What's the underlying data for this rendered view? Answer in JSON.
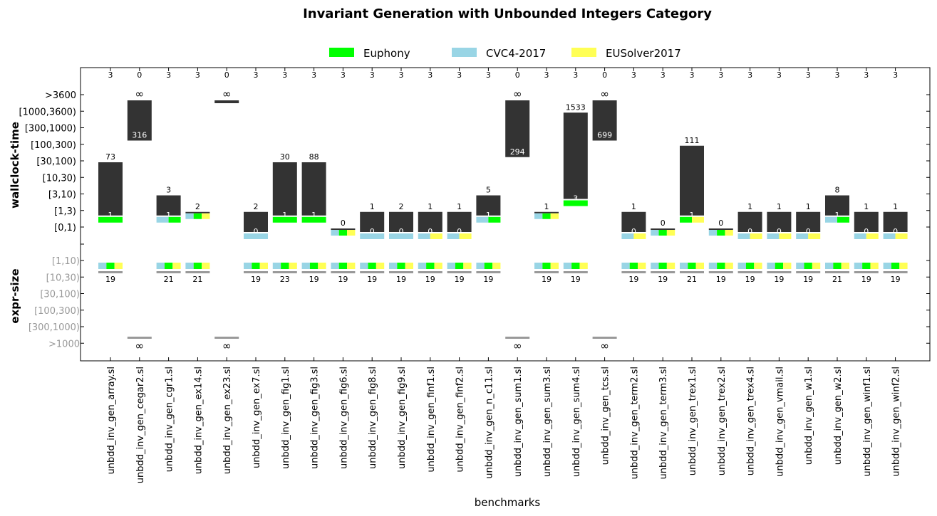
{
  "chart_data": {
    "type": "bar",
    "title": "Invariant Generation with Unbounded Integers Category",
    "xlabel": "benchmarks",
    "ylabel_time": "wallclock-time",
    "ylabel_size": "expr-size",
    "time_ticks": [
      ">3600",
      "[1000,3600)",
      "[300,1000)",
      "[100,300)",
      "[30,100)",
      "[10,30)",
      "[3,10)",
      "[1,3)",
      "[0,1)"
    ],
    "size_ticks": [
      "[1,10)",
      "[10,30)",
      "[30,100)",
      "[100,300)",
      "[300,1000)",
      ">1000"
    ],
    "legend": [
      {
        "name": "Euphony",
        "color": "#00ff00"
      },
      {
        "name": "CVC4-2017",
        "color": "#99d5e5"
      },
      {
        "name": "EUSolver2017",
        "color": "#ffff55"
      }
    ],
    "colors": {
      "bar": "#333333",
      "size_line": "#999999"
    },
    "infinity_symbol": "∞",
    "benchmarks": [
      {
        "name": "unbdd_inv_gen_array.sl",
        "solved": "3",
        "max_time": "73",
        "min_time": "1",
        "fastest": [
          "Euphony"
        ],
        "solvers": [
          "CVC4-2017",
          "Euphony",
          "EUSolver2017"
        ],
        "size": "19"
      },
      {
        "name": "unbdd_inv_gen_cegar2.sl",
        "solved": "0",
        "max_time": "∞",
        "min_time": "316",
        "fastest": [],
        "solvers": [],
        "size": "∞"
      },
      {
        "name": "unbdd_inv_gen_cgr1.sl",
        "solved": "3",
        "max_time": "3",
        "min_time": "1",
        "fastest": [
          "CVC4-2017",
          "Euphony"
        ],
        "solvers": [
          "CVC4-2017",
          "Euphony",
          "EUSolver2017"
        ],
        "size": "21"
      },
      {
        "name": "unbdd_inv_gen_ex14.sl",
        "solved": "3",
        "max_time": "2",
        "min_time": "",
        "fastest": [
          "CVC4-2017",
          "Euphony",
          "EUSolver2017"
        ],
        "solvers": [
          "CVC4-2017",
          "Euphony",
          "EUSolver2017"
        ],
        "size": "21"
      },
      {
        "name": "unbdd_inv_gen_ex23.sl",
        "solved": "0",
        "max_time": "∞",
        "min_time": "",
        "fastest": [],
        "solvers": [],
        "size": "∞"
      },
      {
        "name": "unbdd_inv_gen_ex7.sl",
        "solved": "3",
        "max_time": "2",
        "min_time": "0",
        "fastest": [
          "CVC4-2017"
        ],
        "solvers": [
          "CVC4-2017",
          "Euphony",
          "EUSolver2017"
        ],
        "size": "19"
      },
      {
        "name": "unbdd_inv_gen_fig1.sl",
        "solved": "3",
        "max_time": "30",
        "min_time": "1",
        "fastest": [
          "Euphony"
        ],
        "solvers": [
          "CVC4-2017",
          "Euphony",
          "EUSolver2017"
        ],
        "size": "23"
      },
      {
        "name": "unbdd_inv_gen_fig3.sl",
        "solved": "3",
        "max_time": "88",
        "min_time": "1",
        "fastest": [
          "Euphony"
        ],
        "solvers": [
          "CVC4-2017",
          "Euphony",
          "EUSolver2017"
        ],
        "size": "19"
      },
      {
        "name": "unbdd_inv_gen_fig6.sl",
        "solved": "3",
        "max_time": "0",
        "min_time": "",
        "fastest": [
          "CVC4-2017",
          "Euphony",
          "EUSolver2017"
        ],
        "solvers": [
          "CVC4-2017",
          "Euphony",
          "EUSolver2017"
        ],
        "size": "19"
      },
      {
        "name": "unbdd_inv_gen_fig8.sl",
        "solved": "3",
        "max_time": "1",
        "min_time": "0",
        "fastest": [
          "CVC4-2017"
        ],
        "solvers": [
          "CVC4-2017",
          "Euphony",
          "EUSolver2017"
        ],
        "size": "19"
      },
      {
        "name": "unbdd_inv_gen_fig9.sl",
        "solved": "3",
        "max_time": "2",
        "min_time": "0",
        "fastest": [
          "CVC4-2017"
        ],
        "solvers": [
          "CVC4-2017",
          "Euphony",
          "EUSolver2017"
        ],
        "size": "19"
      },
      {
        "name": "unbdd_inv_gen_finf1.sl",
        "solved": "3",
        "max_time": "1",
        "min_time": "0",
        "fastest": [
          "CVC4-2017",
          "EUSolver2017"
        ],
        "solvers": [
          "CVC4-2017",
          "Euphony",
          "EUSolver2017"
        ],
        "size": "19"
      },
      {
        "name": "unbdd_inv_gen_finf2.sl",
        "solved": "3",
        "max_time": "1",
        "min_time": "0",
        "fastest": [
          "CVC4-2017",
          "EUSolver2017"
        ],
        "solvers": [
          "CVC4-2017",
          "Euphony",
          "EUSolver2017"
        ],
        "size": "19"
      },
      {
        "name": "unbdd_inv_gen_n_c11.sl",
        "solved": "3",
        "max_time": "5",
        "min_time": "1",
        "fastest": [
          "CVC4-2017",
          "Euphony"
        ],
        "solvers": [
          "CVC4-2017",
          "Euphony",
          "EUSolver2017"
        ],
        "size": "19"
      },
      {
        "name": "unbdd_inv_gen_sum1.sl",
        "solved": "0",
        "max_time": "∞",
        "min_time": "294",
        "fastest": [],
        "solvers": [],
        "size": "∞"
      },
      {
        "name": "unbdd_inv_gen_sum3.sl",
        "solved": "3",
        "max_time": "1",
        "min_time": "",
        "fastest": [
          "CVC4-2017",
          "Euphony",
          "EUSolver2017"
        ],
        "solvers": [
          "CVC4-2017",
          "Euphony",
          "EUSolver2017"
        ],
        "size": "19"
      },
      {
        "name": "unbdd_inv_gen_sum4.sl",
        "solved": "3",
        "max_time": "1533",
        "min_time": "3",
        "fastest": [
          "Euphony"
        ],
        "solvers": [
          "CVC4-2017",
          "Euphony",
          "EUSolver2017"
        ],
        "size": "19"
      },
      {
        "name": "unbdd_inv_gen_tcs.sl",
        "solved": "0",
        "max_time": "∞",
        "min_time": "699",
        "fastest": [],
        "solvers": [],
        "size": "∞"
      },
      {
        "name": "unbdd_inv_gen_term2.sl",
        "solved": "3",
        "max_time": "1",
        "min_time": "0",
        "fastest": [
          "CVC4-2017",
          "EUSolver2017"
        ],
        "solvers": [
          "CVC4-2017",
          "Euphony",
          "EUSolver2017"
        ],
        "size": "19"
      },
      {
        "name": "unbdd_inv_gen_term3.sl",
        "solved": "3",
        "max_time": "0",
        "min_time": "",
        "fastest": [
          "CVC4-2017",
          "Euphony",
          "EUSolver2017"
        ],
        "solvers": [
          "CVC4-2017",
          "Euphony",
          "EUSolver2017"
        ],
        "size": "19"
      },
      {
        "name": "unbdd_inv_gen_trex1.sl",
        "solved": "3",
        "max_time": "111",
        "min_time": "1",
        "fastest": [
          "Euphony",
          "EUSolver2017"
        ],
        "solvers": [
          "CVC4-2017",
          "Euphony",
          "EUSolver2017"
        ],
        "size": "21"
      },
      {
        "name": "unbdd_inv_gen_trex2.sl",
        "solved": "3",
        "max_time": "0",
        "min_time": "",
        "fastest": [
          "CVC4-2017",
          "Euphony",
          "EUSolver2017"
        ],
        "solvers": [
          "CVC4-2017",
          "Euphony",
          "EUSolver2017"
        ],
        "size": "19"
      },
      {
        "name": "unbdd_inv_gen_trex4.sl",
        "solved": "3",
        "max_time": "1",
        "min_time": "0",
        "fastest": [
          "CVC4-2017",
          "EUSolver2017"
        ],
        "solvers": [
          "CVC4-2017",
          "Euphony",
          "EUSolver2017"
        ],
        "size": "19"
      },
      {
        "name": "unbdd_inv_gen_vmail.sl",
        "solved": "3",
        "max_time": "1",
        "min_time": "0",
        "fastest": [
          "CVC4-2017",
          "EUSolver2017"
        ],
        "solvers": [
          "CVC4-2017",
          "Euphony",
          "EUSolver2017"
        ],
        "size": "19"
      },
      {
        "name": "unbdd_inv_gen_w1.sl",
        "solved": "3",
        "max_time": "1",
        "min_time": "0",
        "fastest": [
          "CVC4-2017",
          "EUSolver2017"
        ],
        "solvers": [
          "CVC4-2017",
          "Euphony",
          "EUSolver2017"
        ],
        "size": "19"
      },
      {
        "name": "unbdd_inv_gen_w2.sl",
        "solved": "3",
        "max_time": "8",
        "min_time": "1",
        "fastest": [
          "CVC4-2017",
          "Euphony"
        ],
        "solvers": [
          "CVC4-2017",
          "Euphony",
          "EUSolver2017"
        ],
        "size": "21"
      },
      {
        "name": "unbdd_inv_gen_winf1.sl",
        "solved": "3",
        "max_time": "1",
        "min_time": "0",
        "fastest": [
          "CVC4-2017",
          "EUSolver2017"
        ],
        "solvers": [
          "CVC4-2017",
          "Euphony",
          "EUSolver2017"
        ],
        "size": "19"
      },
      {
        "name": "unbdd_inv_gen_winf2.sl",
        "solved": "3",
        "max_time": "1",
        "min_time": "0",
        "fastest": [
          "CVC4-2017",
          "EUSolver2017"
        ],
        "solvers": [
          "CVC4-2017",
          "Euphony",
          "EUSolver2017"
        ],
        "size": "19"
      }
    ]
  }
}
